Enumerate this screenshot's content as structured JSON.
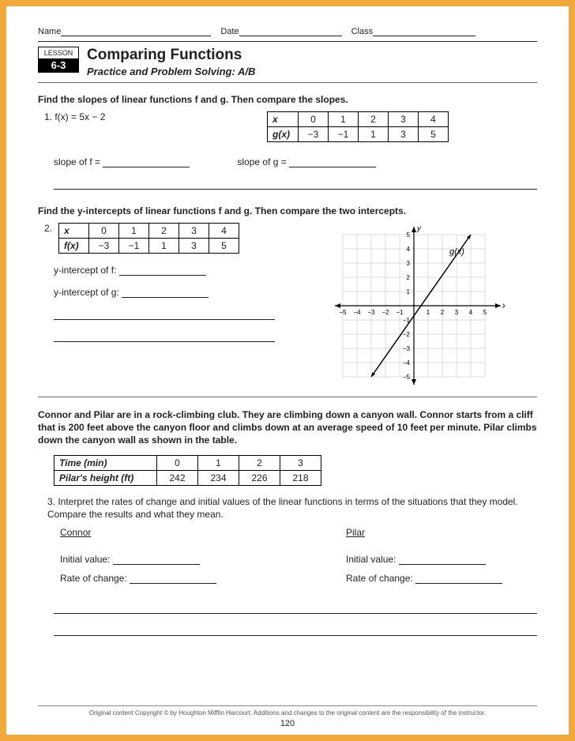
{
  "header": {
    "name": "Name",
    "date": "Date",
    "class": "Class"
  },
  "lesson": {
    "label": "LESSON",
    "number": "6-3",
    "title": "Comparing Functions",
    "subtitle": "Practice and Problem Solving: A/B"
  },
  "section1": {
    "instruction": "Find the slopes of linear functions f and g. Then compare the slopes.",
    "q1_label": "1.  f(x) = 5x − 2",
    "table": {
      "row1": [
        "x",
        "0",
        "1",
        "2",
        "3",
        "4"
      ],
      "row2": [
        "g(x)",
        "−3",
        "−1",
        "1",
        "3",
        "5"
      ]
    },
    "slope_f": "slope of f =",
    "slope_g": "slope of g ="
  },
  "section2": {
    "instruction": "Find the y-intercepts of linear functions f and g. Then compare the two intercepts.",
    "q2_label": "2.",
    "table": {
      "row1": [
        "x",
        "0",
        "1",
        "2",
        "3",
        "4"
      ],
      "row2": [
        "f(x)",
        "−3",
        "−1",
        "1",
        "3",
        "5"
      ]
    },
    "yint_f": "y-intercept of f:",
    "yint_g": "y-intercept of g:",
    "graph": {
      "label": "g(x)",
      "xlim": [
        -5,
        5
      ],
      "ylim": [
        -5,
        5
      ],
      "xticks": [
        "−5",
        "−4",
        "−3",
        "−2",
        "−1",
        "",
        "1",
        "2",
        "3",
        "4",
        "5"
      ],
      "yticks": [
        "−5",
        "−4",
        "−3",
        "−2",
        "−1",
        "",
        "1",
        "2",
        "3",
        "4",
        "5"
      ],
      "line_p1": [
        -3,
        -5
      ],
      "line_p2": [
        4,
        5
      ],
      "axis_x": "x",
      "axis_y": "y"
    }
  },
  "section3": {
    "text": "Connor and Pilar are in a rock-climbing club. They are climbing down a canyon wall. Connor starts from a cliff that is 200 feet above the canyon floor and climbs down at an average speed of 10 feet per minute. Pilar climbs down the canyon wall as shown in the table.",
    "table": {
      "row1": [
        "Time (min)",
        "0",
        "1",
        "2",
        "3"
      ],
      "row2": [
        "Pilar's height (ft)",
        "242",
        "234",
        "226",
        "218"
      ]
    },
    "q3": "3.  Interpret the rates of change and initial values of the linear functions in terms of the situations that they model. Compare the results and what they mean.",
    "connor": "Connor",
    "pilar": "Pilar",
    "initial": "Initial value:",
    "rate": "Rate of change:"
  },
  "footer": {
    "copyright": "Original content Copyright © by Houghton Mifflin Harcourt. Additions and changes to the original content are the responsibility of the instructor.",
    "page": "120"
  }
}
